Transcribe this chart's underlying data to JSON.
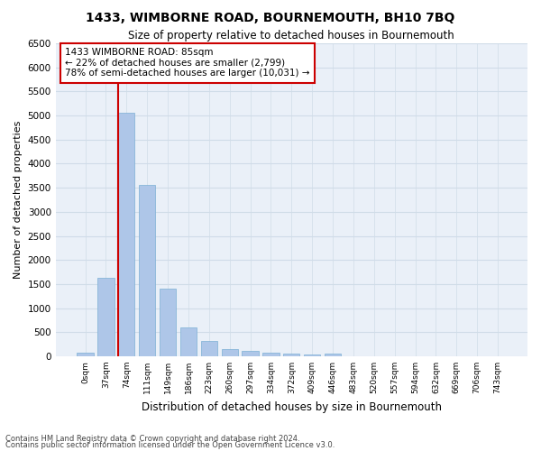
{
  "title": "1433, WIMBORNE ROAD, BOURNEMOUTH, BH10 7BQ",
  "subtitle": "Size of property relative to detached houses in Bournemouth",
  "xlabel": "Distribution of detached houses by size in Bournemouth",
  "ylabel": "Number of detached properties",
  "footer_line1": "Contains HM Land Registry data © Crown copyright and database right 2024.",
  "footer_line2": "Contains public sector information licensed under the Open Government Licence v3.0.",
  "categories": [
    "0sqm",
    "37sqm",
    "74sqm",
    "111sqm",
    "149sqm",
    "186sqm",
    "223sqm",
    "260sqm",
    "297sqm",
    "334sqm",
    "372sqm",
    "409sqm",
    "446sqm",
    "483sqm",
    "520sqm",
    "557sqm",
    "594sqm",
    "632sqm",
    "669sqm",
    "706sqm",
    "743sqm"
  ],
  "values": [
    75,
    1620,
    5060,
    3560,
    1400,
    600,
    310,
    155,
    105,
    65,
    50,
    45,
    55,
    0,
    0,
    0,
    0,
    0,
    0,
    0,
    0
  ],
  "bar_color": "#aec6e8",
  "bar_edge_color": "#7bafd4",
  "ylim": [
    0,
    6500
  ],
  "yticks": [
    0,
    500,
    1000,
    1500,
    2000,
    2500,
    3000,
    3500,
    4000,
    4500,
    5000,
    5500,
    6000,
    6500
  ],
  "property_line_x": 2,
  "property_size": 85,
  "annotation_title": "1433 WIMBORNE ROAD: 85sqm",
  "annotation_line1": "← 22% of detached houses are smaller (2,799)",
  "annotation_line2": "78% of semi-detached houses are larger (10,031) →",
  "annotation_box_color": "#ffffff",
  "annotation_box_edge": "#cc0000",
  "vline_color": "#cc0000",
  "grid_color": "#d0dce8",
  "background_color": "#eaf0f8"
}
